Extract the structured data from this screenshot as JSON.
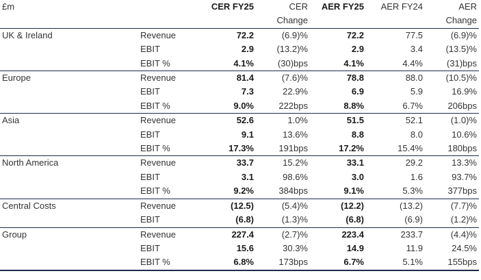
{
  "header": {
    "currency": "£m",
    "cer_fy25": "CER FY25",
    "cer_change_1": "CER",
    "cer_change_2": "Change",
    "aer_fy25": "AER FY25",
    "aer_fy24": "AER FY24",
    "aer_change_1": "AER",
    "aer_change_2": "Change"
  },
  "groups": [
    {
      "name": "UK & Ireland",
      "rows": [
        {
          "metric": "Revenue",
          "cer_fy25": "72.2",
          "cer_change": "(6.9)%",
          "aer_fy25": "72.2",
          "aer_fy24": "77.5",
          "aer_change": "(6.9)%"
        },
        {
          "metric": "EBIT",
          "cer_fy25": "2.9",
          "cer_change": "(13.2)%",
          "aer_fy25": "2.9",
          "aer_fy24": "3.4",
          "aer_change": "(13.5)%"
        },
        {
          "metric": "EBIT %",
          "cer_fy25": "4.1%",
          "cer_change": "(30)bps",
          "aer_fy25": "4.1%",
          "aer_fy24": "4.4%",
          "aer_change": "(31)bps"
        }
      ]
    },
    {
      "name": "Europe",
      "rows": [
        {
          "metric": "Revenue",
          "cer_fy25": "81.4",
          "cer_change": "(7.6)%",
          "aer_fy25": "78.8",
          "aer_fy24": "88.0",
          "aer_change": "(10.5)%"
        },
        {
          "metric": "EBIT",
          "cer_fy25": "7.3",
          "cer_change": "22.9%",
          "aer_fy25": "6.9",
          "aer_fy24": "5.9",
          "aer_change": "16.9%"
        },
        {
          "metric": "EBIT %",
          "cer_fy25": "9.0%",
          "cer_change": "222bps",
          "aer_fy25": "8.8%",
          "aer_fy24": "6.7%",
          "aer_change": "206bps"
        }
      ]
    },
    {
      "name": "Asia",
      "rows": [
        {
          "metric": "Revenue",
          "cer_fy25": "52.6",
          "cer_change": "1.0%",
          "aer_fy25": "51.5",
          "aer_fy24": "52.1",
          "aer_change": "(1.0)%"
        },
        {
          "metric": "EBIT",
          "cer_fy25": "9.1",
          "cer_change": "13.6%",
          "aer_fy25": "8.8",
          "aer_fy24": "8.0",
          "aer_change": "10.6%"
        },
        {
          "metric": "EBIT %",
          "cer_fy25": "17.3%",
          "cer_change": "191bps",
          "aer_fy25": "17.2%",
          "aer_fy24": "15.4%",
          "aer_change": "180bps"
        }
      ]
    },
    {
      "name": "North America",
      "rows": [
        {
          "metric": "Revenue",
          "cer_fy25": "33.7",
          "cer_change": "15.2%",
          "aer_fy25": "33.1",
          "aer_fy24": "29.2",
          "aer_change": "13.3%"
        },
        {
          "metric": "EBIT",
          "cer_fy25": "3.1",
          "cer_change": "98.6%",
          "aer_fy25": "3.0",
          "aer_fy24": "1.6",
          "aer_change": "93.7%"
        },
        {
          "metric": "EBIT %",
          "cer_fy25": "9.2%",
          "cer_change": "384bps",
          "aer_fy25": "9.1%",
          "aer_fy24": "5.3%",
          "aer_change": "377bps"
        }
      ]
    },
    {
      "name": "Central Costs",
      "rows": [
        {
          "metric": "Revenue",
          "cer_fy25": "(12.5)",
          "cer_change": "(5.4)%",
          "aer_fy25": "(12.2)",
          "aer_fy24": "(13.2)",
          "aer_change": "(7.7)%"
        },
        {
          "metric": "EBIT",
          "cer_fy25": "(6.8)",
          "cer_change": "(1.3)%",
          "aer_fy25": "(6.8)",
          "aer_fy24": "(6.9)",
          "aer_change": "(1.2)%"
        }
      ]
    },
    {
      "name": "Group",
      "rows": [
        {
          "metric": "Revenue",
          "cer_fy25": "227.4",
          "cer_change": "(2.7)%",
          "aer_fy25": "223.4",
          "aer_fy24": "233.7",
          "aer_change": "(4.4)%"
        },
        {
          "metric": "EBIT",
          "cer_fy25": "15.6",
          "cer_change": "30.3%",
          "aer_fy25": "14.9",
          "aer_fy24": "11.9",
          "aer_change": "24.5%"
        },
        {
          "metric": "EBIT %",
          "cer_fy25": "6.8%",
          "cer_change": "173bps",
          "aer_fy25": "6.7%",
          "aer_fy24": "5.1%",
          "aer_change": "155bps"
        }
      ]
    }
  ]
}
